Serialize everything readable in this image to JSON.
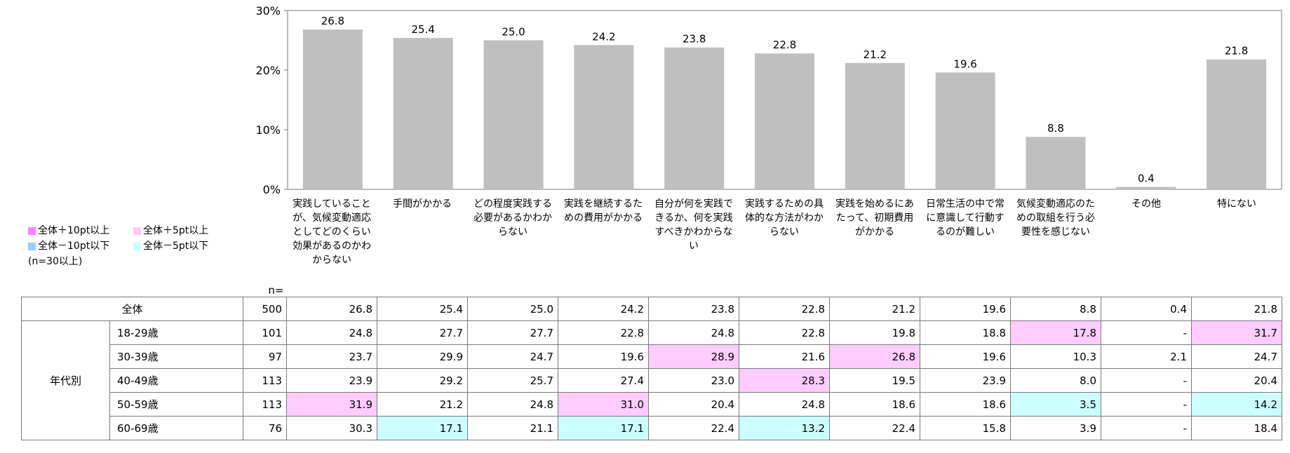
{
  "chart_data": {
    "type": "bar",
    "ylim": [
      0,
      30
    ],
    "y_ticks": [
      "0%",
      "10%",
      "20%",
      "30%"
    ],
    "categories": [
      "実践していることが、気候変動適応としてどのくらい効果があるのかわからない",
      "手間がかかる",
      "どの程度実践する必要があるかわからない",
      "実践を継続するための費用がかかる",
      "自分が何を実践できるか、何を実践すべきかわからない",
      "実践するための具体的な方法がわからない",
      "実践を始めるにあたって、初期費用がかかる",
      "日常生活の中で常に意識して行動するのが難しい",
      "気候変動適応のための取組を行う必要性を感じない",
      "その他",
      "特にない"
    ],
    "values": [
      26.8,
      25.4,
      25.0,
      24.2,
      23.8,
      22.8,
      21.2,
      19.6,
      8.8,
      0.4,
      21.8
    ],
    "value_labels": [
      "26.8",
      "25.4",
      "25.0",
      "24.2",
      "23.8",
      "22.8",
      "21.2",
      "19.6",
      "8.8",
      "0.4",
      "21.8"
    ],
    "bar_color": "#bfbfbf"
  },
  "legend": {
    "items": [
      {
        "label": "全体＋10pt以上",
        "color": "#ff7fff"
      },
      {
        "label": "全体＋5pt以上",
        "color": "#ffccff"
      },
      {
        "label": "全体－10pt以下",
        "color": "#99ccff"
      },
      {
        "label": "全体－5pt以下",
        "color": "#ccffff"
      }
    ],
    "note": "(n=30以上)"
  },
  "table": {
    "n_header": "n=",
    "question_headers": [
      "実践していることが、気候変動適応としてどのくらい効果があるのかわからない",
      "手間がかかる",
      "どの程度実践する必要があるかわからない",
      "実践を継続するための費用がかかる",
      "自分が何を実践できるか、何を実践すべきかわからない",
      "実践するための具体的な方法がわからない",
      "実践を始めるにあたって、初期費用がかかる",
      "日常生活の中で常に意識して行動するのが難しい",
      "気候変動適応のための取組を行う必要性を感じない",
      "その他",
      "特にない"
    ],
    "total_row": {
      "label": "全体",
      "n": "500",
      "values": [
        "26.8",
        "25.4",
        "25.0",
        "24.2",
        "23.8",
        "22.8",
        "21.2",
        "19.6",
        "8.8",
        "0.4",
        "21.8"
      ]
    },
    "group_label": "年代別",
    "rows": [
      {
        "label": "18-29歳",
        "n": "101",
        "values": [
          "24.8",
          "27.7",
          "27.7",
          "22.8",
          "24.8",
          "22.8",
          "19.8",
          "18.8",
          "17.8",
          "-",
          "31.7"
        ],
        "highlights": [
          "",
          "",
          "",
          "",
          "",
          "",
          "",
          "",
          "#ffccff",
          "",
          "#ffccff"
        ]
      },
      {
        "label": "30-39歳",
        "n": "97",
        "values": [
          "23.7",
          "29.9",
          "24.7",
          "19.6",
          "28.9",
          "21.6",
          "26.8",
          "19.6",
          "10.3",
          "2.1",
          "24.7"
        ],
        "highlights": [
          "",
          "",
          "",
          "",
          "#ffccff",
          "",
          "#ffccff",
          "",
          "",
          "",
          ""
        ]
      },
      {
        "label": "40-49歳",
        "n": "113",
        "values": [
          "23.9",
          "29.2",
          "25.7",
          "27.4",
          "23.0",
          "28.3",
          "19.5",
          "23.9",
          "8.0",
          "-",
          "20.4"
        ],
        "highlights": [
          "",
          "",
          "",
          "",
          "",
          "#ffccff",
          "",
          "",
          "",
          "",
          ""
        ]
      },
      {
        "label": "50-59歳",
        "n": "113",
        "values": [
          "31.9",
          "21.2",
          "24.8",
          "31.0",
          "20.4",
          "24.8",
          "18.6",
          "18.6",
          "3.5",
          "-",
          "14.2"
        ],
        "highlights": [
          "#ffccff",
          "",
          "",
          "#ffccff",
          "",
          "",
          "",
          "",
          "#ccffff",
          "",
          "#ccffff"
        ]
      },
      {
        "label": "60-69歳",
        "n": "76",
        "values": [
          "30.3",
          "17.1",
          "21.1",
          "17.1",
          "22.4",
          "13.2",
          "22.4",
          "15.8",
          "3.9",
          "-",
          "18.4"
        ],
        "highlights": [
          "",
          "#ccffff",
          "",
          "#ccffff",
          "",
          "#ccffff",
          "",
          "",
          "",
          "",
          ""
        ]
      }
    ]
  }
}
